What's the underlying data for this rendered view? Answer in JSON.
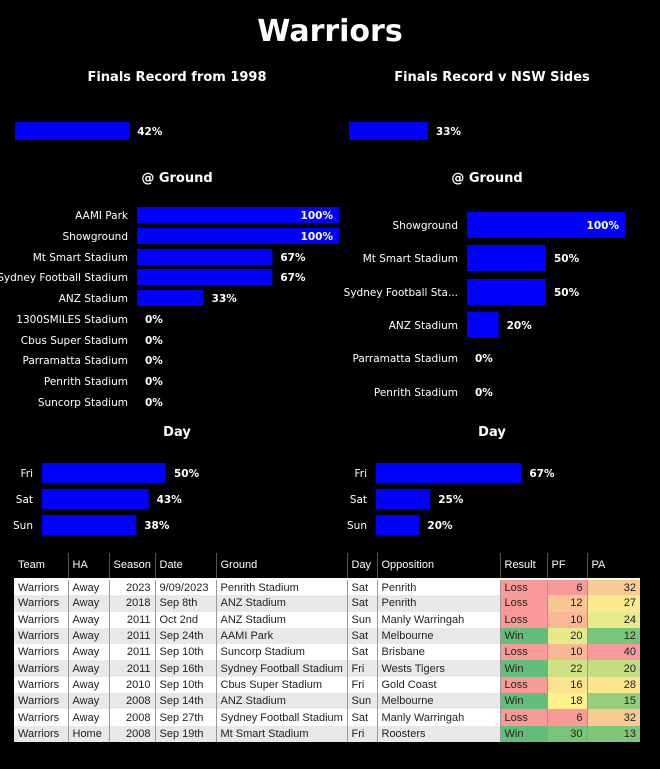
{
  "page_title": "Warriors",
  "chart_data": [
    {
      "id": "finals-record",
      "type": "bar",
      "title": "Finals Record from 1998",
      "categories": [
        ""
      ],
      "values": [
        42
      ],
      "unit": "%",
      "xlim": [
        0,
        100
      ]
    },
    {
      "id": "finals-nsw",
      "type": "bar",
      "title": "Finals Record v NSW Sides",
      "categories": [
        ""
      ],
      "values": [
        33
      ],
      "unit": "%",
      "xlim": [
        0,
        100
      ]
    },
    {
      "id": "ground-left",
      "type": "bar",
      "title": "@ Ground",
      "categories": [
        "AAMI Park",
        "Showground",
        "Mt Smart Stadium",
        "Sydney Football Stadium",
        "ANZ Stadium",
        "1300SMILES Stadium",
        "Cbus Super Stadium",
        "Parramatta Stadium",
        "Penrith Stadium",
        "Suncorp Stadium"
      ],
      "values": [
        100,
        100,
        67,
        67,
        33,
        0,
        0,
        0,
        0,
        0
      ],
      "unit": "%",
      "xlim": [
        0,
        100
      ]
    },
    {
      "id": "ground-right",
      "type": "bar",
      "title": "@ Ground",
      "categories": [
        "Showground",
        "Mt Smart Stadium",
        "Sydney Football Sta...",
        "ANZ Stadium",
        "Parramatta Stadium",
        "Penrith Stadium"
      ],
      "values": [
        100,
        50,
        50,
        20,
        0,
        0
      ],
      "unit": "%",
      "xlim": [
        0,
        100
      ]
    },
    {
      "id": "day-left",
      "type": "bar",
      "title": "Day",
      "categories": [
        "Fri",
        "Sat",
        "Sun"
      ],
      "values": [
        50,
        43,
        38
      ],
      "unit": "%",
      "xlim": [
        0,
        100
      ]
    },
    {
      "id": "day-right",
      "type": "bar",
      "title": "Day",
      "categories": [
        "Fri",
        "Sat",
        "Sun"
      ],
      "values": [
        67,
        25,
        20
      ],
      "unit": "%",
      "xlim": [
        0,
        100
      ]
    }
  ],
  "colors": {
    "bar": "#0000ff",
    "loss": "#f89a9a",
    "win": "#63be7b"
  },
  "table": {
    "headers": [
      "Team",
      "HA",
      "Season",
      "Date",
      "Ground",
      "Day",
      "Opposition",
      "Result",
      "PF",
      "PA"
    ],
    "rows": [
      [
        "Warriors",
        "Away",
        "2023",
        "9/09/2023",
        "Penrith Stadium",
        "Sat",
        "Penrith",
        "Loss",
        "6",
        "32"
      ],
      [
        "Warriors",
        "Away",
        "2018",
        "Sep 8th",
        "ANZ Stadium",
        "Sat",
        "Penrith",
        "Loss",
        "12",
        "27"
      ],
      [
        "Warriors",
        "Away",
        "2011",
        "Oct 2nd",
        "ANZ Stadium",
        "Sun",
        "Manly Warringah",
        "Loss",
        "10",
        "24"
      ],
      [
        "Warriors",
        "Away",
        "2011",
        "Sep 24th",
        "AAMI Park",
        "Sat",
        "Melbourne",
        "Win",
        "20",
        "12"
      ],
      [
        "Warriors",
        "Away",
        "2011",
        "Sep 10th",
        "Suncorp Stadium",
        "Sat",
        "Brisbane",
        "Loss",
        "10",
        "40"
      ],
      [
        "Warriors",
        "Away",
        "2011",
        "Sep 16th",
        "Sydney Football Stadium",
        "Fri",
        "Wests Tigers",
        "Win",
        "22",
        "20"
      ],
      [
        "Warriors",
        "Away",
        "2010",
        "Sep 10th",
        "Cbus Super Stadium",
        "Fri",
        "Gold Coast",
        "Loss",
        "16",
        "28"
      ],
      [
        "Warriors",
        "Away",
        "2008",
        "Sep 14th",
        "ANZ Stadium",
        "Sun",
        "Melbourne",
        "Win",
        "18",
        "15"
      ],
      [
        "Warriors",
        "Away",
        "2008",
        "Sep 27th",
        "Sydney Football Stadium",
        "Sat",
        "Manly Warringah",
        "Loss",
        "6",
        "32"
      ],
      [
        "Warriors",
        "Home",
        "2008",
        "Sep 19th",
        "Mt Smart Stadium",
        "Fri",
        "Roosters",
        "Win",
        "30",
        "13"
      ]
    ]
  }
}
